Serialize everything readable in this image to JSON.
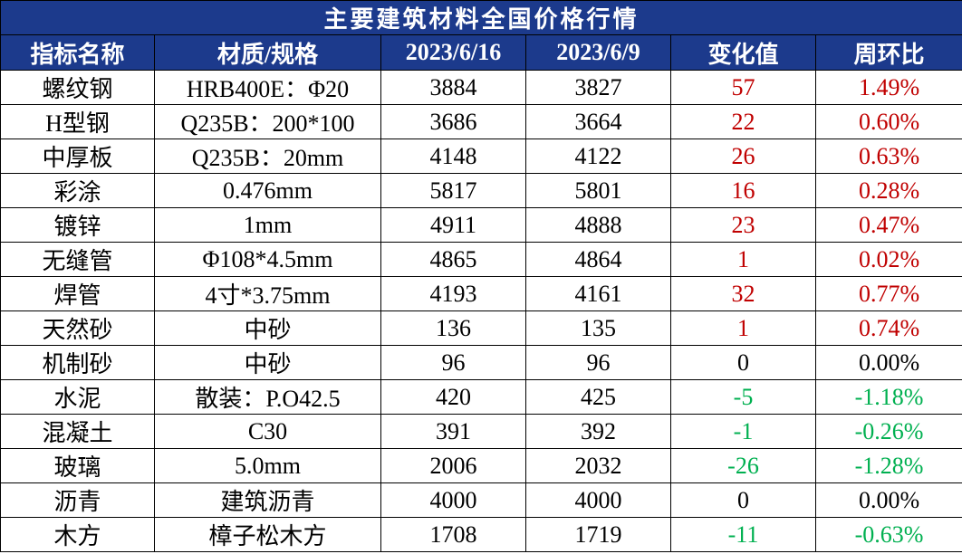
{
  "title": "主要建筑材料全国价格行情",
  "table": {
    "header": [
      "指标名称",
      "材质/规格",
      "2023/6/16",
      "2023/6/9",
      "变化值",
      "周环比"
    ],
    "rows": [
      [
        "螺纹钢",
        "HRB400E：Φ20",
        "3884",
        "3827",
        "57",
        "1.49%"
      ],
      [
        "H型钢",
        "Q235B：200*100",
        "3686",
        "3664",
        "22",
        "0.60%"
      ],
      [
        "中厚板",
        "Q235B：20mm",
        "4148",
        "4122",
        "26",
        "0.63%"
      ],
      [
        "彩涂",
        "0.476mm",
        "5817",
        "5801",
        "16",
        "0.28%"
      ],
      [
        "镀锌",
        "1mm",
        "4911",
        "4888",
        "23",
        "0.47%"
      ],
      [
        "无缝管",
        "Φ108*4.5mm",
        "4865",
        "4864",
        "1",
        "0.02%"
      ],
      [
        "焊管",
        "4寸*3.75mm",
        "4193",
        "4161",
        "32",
        "0.77%"
      ],
      [
        "天然砂",
        "中砂",
        "136",
        "135",
        "1",
        "0.74%"
      ],
      [
        "机制砂",
        "中砂",
        "96",
        "96",
        "0",
        "0.00%"
      ],
      [
        "水泥",
        "散装：P.O42.5",
        "420",
        "425",
        "-5",
        "-1.18%"
      ],
      [
        "混凝土",
        "C30",
        "391",
        "392",
        "-1",
        "-0.26%"
      ],
      [
        "玻璃",
        "5.0mm",
        "2006",
        "2032",
        "-26",
        "-1.28%"
      ],
      [
        "沥青",
        "建筑沥青",
        "4000",
        "4000",
        "0",
        "0.00%"
      ],
      [
        "木方",
        "樟子松木方",
        "1708",
        "1719",
        "-11",
        "-0.63%"
      ]
    ]
  }
}
